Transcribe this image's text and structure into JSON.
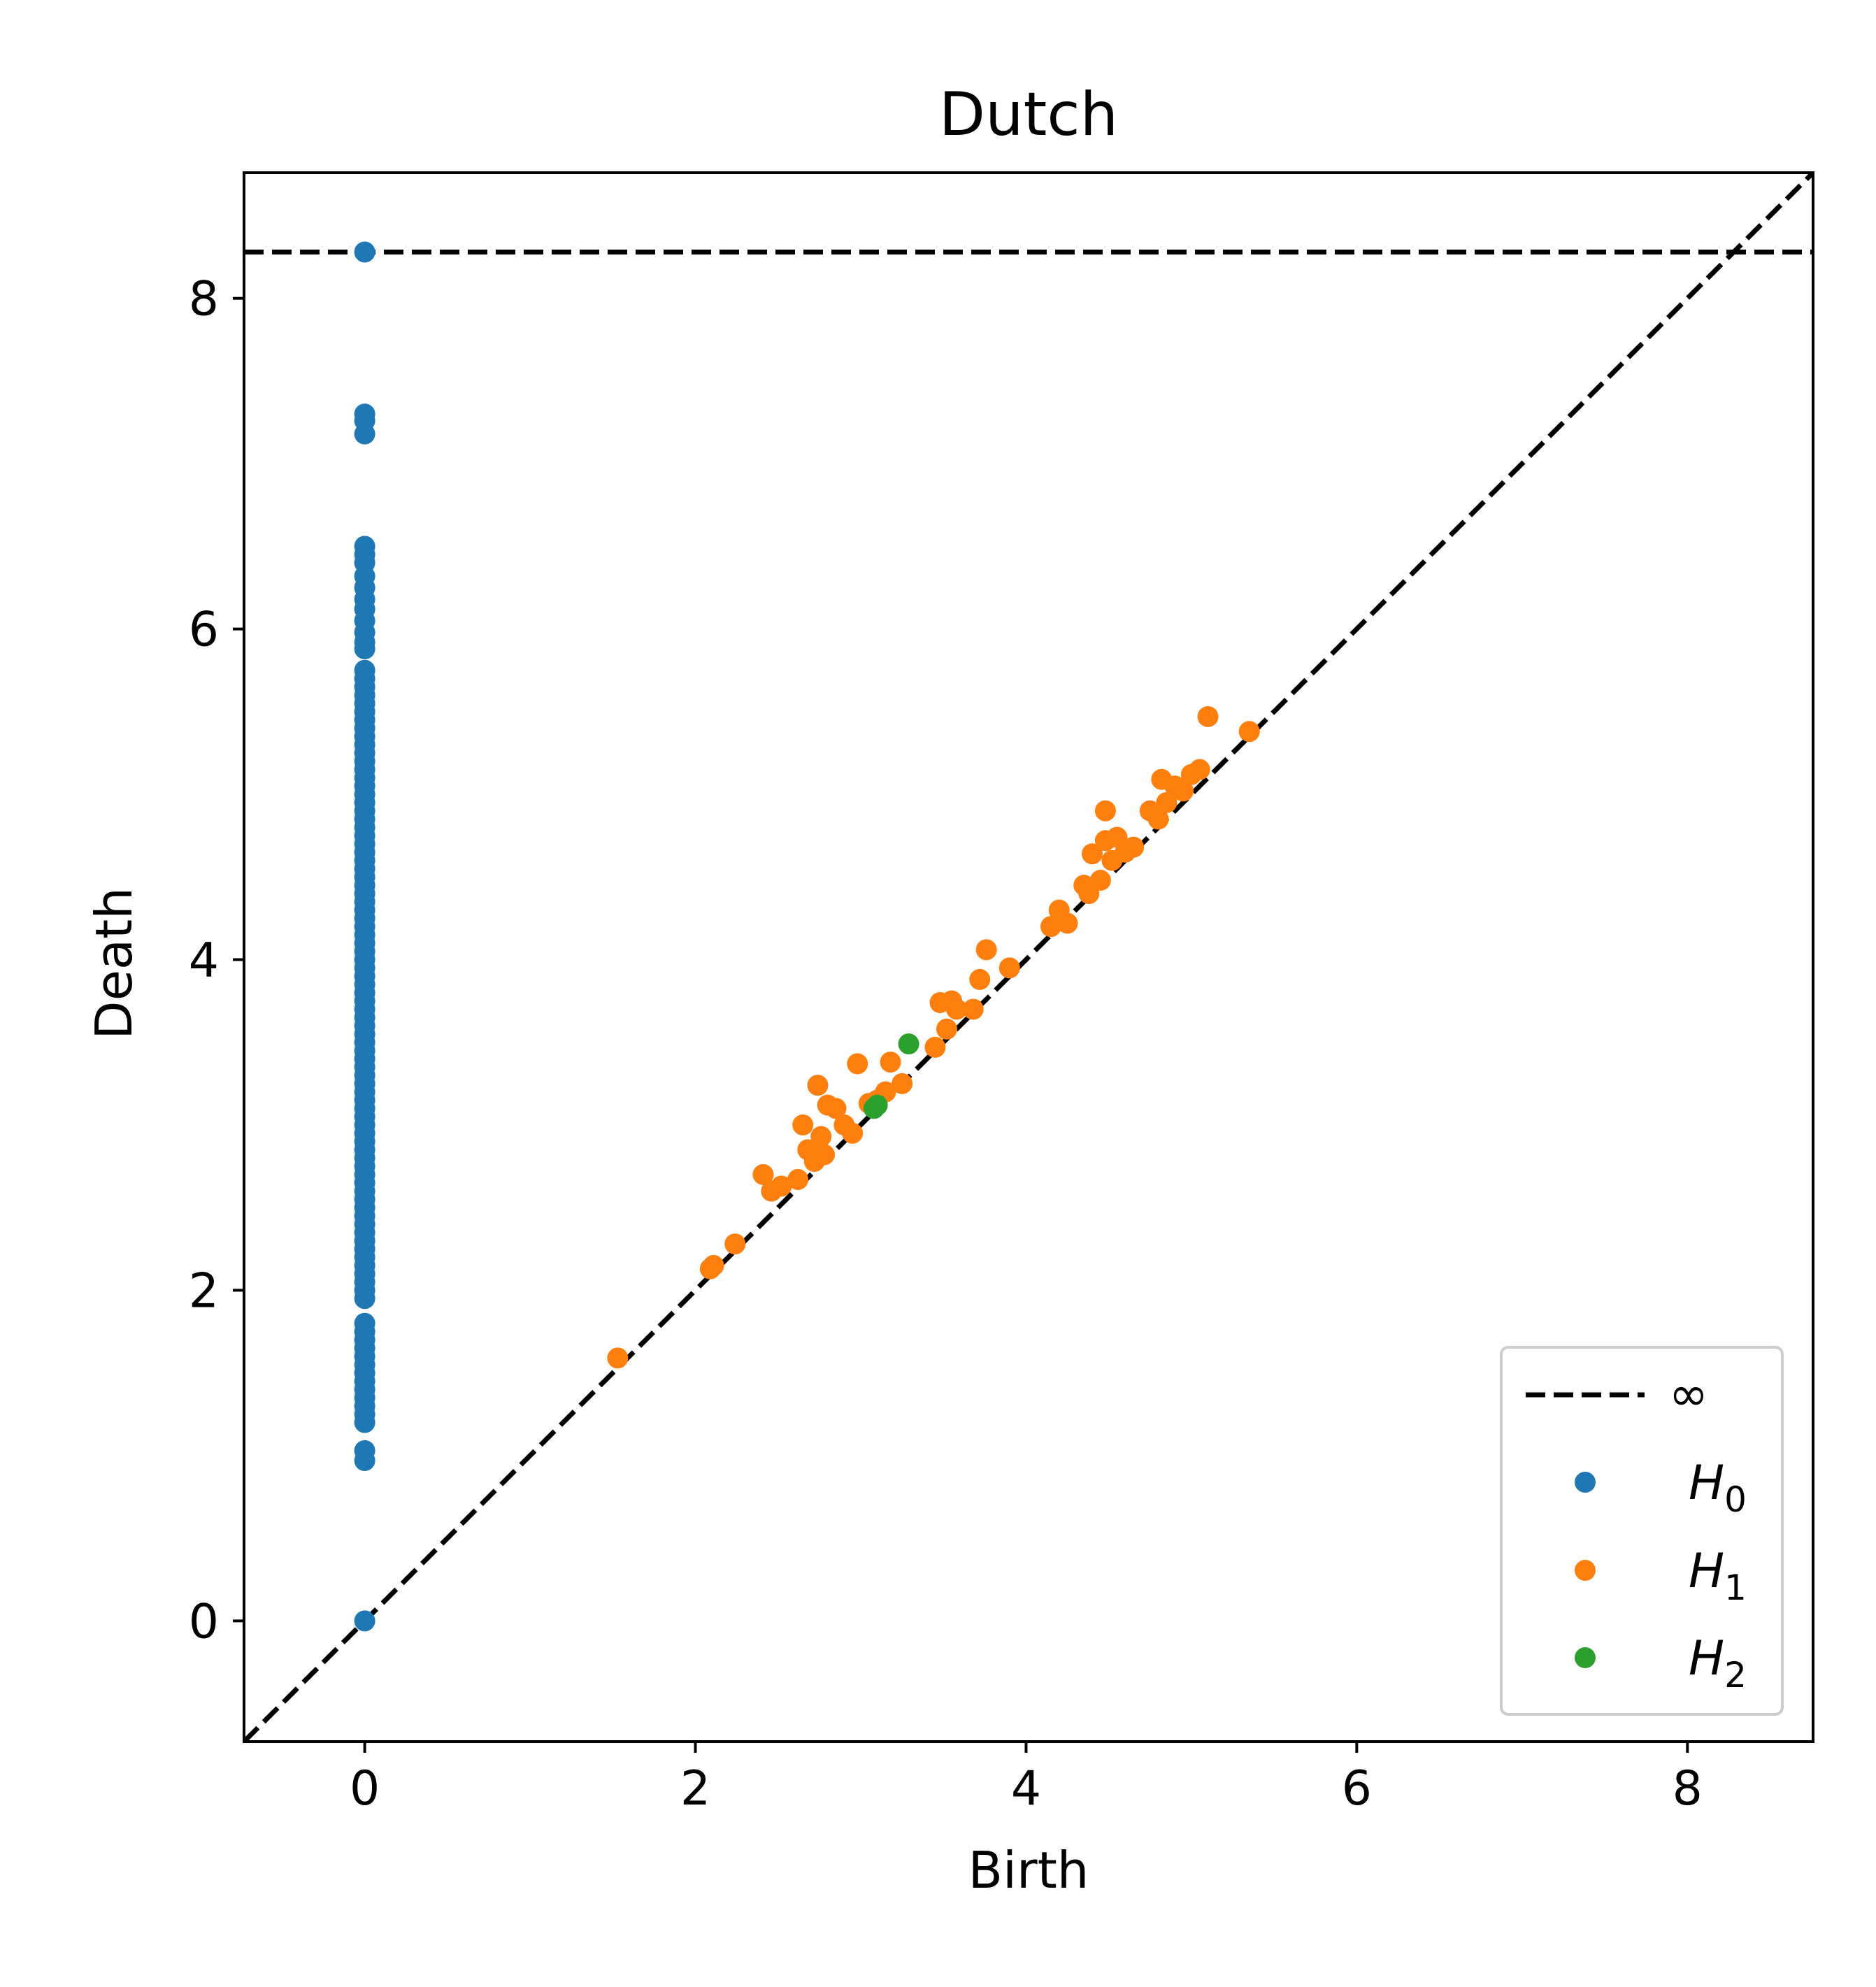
{
  "chart_data": {
    "type": "scatter",
    "title": "Dutch",
    "xlabel": "Birth",
    "ylabel": "Death",
    "xlim": [
      -0.73,
      8.76
    ],
    "ylim": [
      -0.73,
      8.76
    ],
    "x_ticks": [
      {
        "value": 0,
        "label": "0"
      },
      {
        "value": 2,
        "label": "2"
      },
      {
        "value": 4,
        "label": "4"
      },
      {
        "value": 6,
        "label": "6"
      },
      {
        "value": 8,
        "label": "8"
      }
    ],
    "y_ticks": [
      {
        "value": 0,
        "label": "0"
      },
      {
        "value": 2,
        "label": "2"
      },
      {
        "value": 4,
        "label": "4"
      },
      {
        "value": 6,
        "label": "6"
      },
      {
        "value": 8,
        "label": "8"
      }
    ],
    "grid": false,
    "infinity_line": {
      "y": 8.28,
      "label": "∞",
      "style": "dashed",
      "color": "#000000"
    },
    "diagonal_line": {
      "from": [
        -0.73,
        -0.73
      ],
      "to": [
        8.76,
        8.76
      ],
      "style": "dashed",
      "color": "#000000"
    },
    "legend": {
      "position": "lower right",
      "entries": [
        {
          "label": "∞",
          "kind": "dashed-line",
          "color": "#000000"
        },
        {
          "label": "H",
          "subscript": "0",
          "kind": "marker",
          "color": "#1f77b4"
        },
        {
          "label": "H",
          "subscript": "1",
          "kind": "marker",
          "color": "#ff7f0e"
        },
        {
          "label": "H",
          "subscript": "2",
          "kind": "marker",
          "color": "#2ca02c"
        }
      ]
    },
    "series": [
      {
        "name": "H0",
        "color": "#1f77b4",
        "points": [
          [
            0,
            8.28
          ],
          [
            0,
            7.3
          ],
          [
            0,
            7.26
          ],
          [
            0,
            7.18
          ],
          [
            0,
            6.5
          ],
          [
            0,
            6.45
          ],
          [
            0,
            6.4
          ],
          [
            0,
            6.32
          ],
          [
            0,
            6.25
          ],
          [
            0,
            6.18
          ],
          [
            0,
            6.12
          ],
          [
            0,
            6.05
          ],
          [
            0,
            5.98
          ],
          [
            0,
            5.92
          ],
          [
            0,
            5.88
          ],
          [
            0,
            5.75
          ],
          [
            0,
            5.7
          ],
          [
            0,
            5.65
          ],
          [
            0,
            5.6
          ],
          [
            0,
            5.55
          ],
          [
            0,
            5.5
          ],
          [
            0,
            5.45
          ],
          [
            0,
            5.4
          ],
          [
            0,
            5.35
          ],
          [
            0,
            5.3
          ],
          [
            0,
            5.25
          ],
          [
            0,
            5.2
          ],
          [
            0,
            5.15
          ],
          [
            0,
            5.1
          ],
          [
            0,
            5.05
          ],
          [
            0,
            5.0
          ],
          [
            0,
            4.95
          ],
          [
            0,
            4.9
          ],
          [
            0,
            4.85
          ],
          [
            0,
            4.8
          ],
          [
            0,
            4.75
          ],
          [
            0,
            4.7
          ],
          [
            0,
            4.65
          ],
          [
            0,
            4.6
          ],
          [
            0,
            4.55
          ],
          [
            0,
            4.5
          ],
          [
            0,
            4.45
          ],
          [
            0,
            4.4
          ],
          [
            0,
            4.35
          ],
          [
            0,
            4.3
          ],
          [
            0,
            4.25
          ],
          [
            0,
            4.2
          ],
          [
            0,
            4.15
          ],
          [
            0,
            4.1
          ],
          [
            0,
            4.05
          ],
          [
            0,
            4.0
          ],
          [
            0,
            3.95
          ],
          [
            0,
            3.9
          ],
          [
            0,
            3.85
          ],
          [
            0,
            3.8
          ],
          [
            0,
            3.75
          ],
          [
            0,
            3.7
          ],
          [
            0,
            3.65
          ],
          [
            0,
            3.6
          ],
          [
            0,
            3.55
          ],
          [
            0,
            3.5
          ],
          [
            0,
            3.45
          ],
          [
            0,
            3.4
          ],
          [
            0,
            3.35
          ],
          [
            0,
            3.3
          ],
          [
            0,
            3.25
          ],
          [
            0,
            3.2
          ],
          [
            0,
            3.15
          ],
          [
            0,
            3.1
          ],
          [
            0,
            3.05
          ],
          [
            0,
            3.0
          ],
          [
            0,
            2.95
          ],
          [
            0,
            2.9
          ],
          [
            0,
            2.85
          ],
          [
            0,
            2.8
          ],
          [
            0,
            2.75
          ],
          [
            0,
            2.7
          ],
          [
            0,
            2.65
          ],
          [
            0,
            2.6
          ],
          [
            0,
            2.55
          ],
          [
            0,
            2.5
          ],
          [
            0,
            2.45
          ],
          [
            0,
            2.4
          ],
          [
            0,
            2.35
          ],
          [
            0,
            2.3
          ],
          [
            0,
            2.25
          ],
          [
            0,
            2.2
          ],
          [
            0,
            2.15
          ],
          [
            0,
            2.1
          ],
          [
            0,
            2.05
          ],
          [
            0,
            2.0
          ],
          [
            0,
            1.95
          ],
          [
            0,
            1.8
          ],
          [
            0,
            1.75
          ],
          [
            0,
            1.7
          ],
          [
            0,
            1.65
          ],
          [
            0,
            1.6
          ],
          [
            0,
            1.55
          ],
          [
            0,
            1.5
          ],
          [
            0,
            1.45
          ],
          [
            0,
            1.4
          ],
          [
            0,
            1.35
          ],
          [
            0,
            1.3
          ],
          [
            0,
            1.25
          ],
          [
            0,
            1.2
          ],
          [
            0,
            1.03
          ],
          [
            0,
            0.97
          ],
          [
            0,
            0.0
          ]
        ]
      },
      {
        "name": "H1",
        "color": "#ff7f0e",
        "points": [
          [
            1.53,
            1.59
          ],
          [
            2.09,
            2.13
          ],
          [
            2.11,
            2.15
          ],
          [
            2.24,
            2.28
          ],
          [
            2.41,
            2.7
          ],
          [
            2.46,
            2.6
          ],
          [
            2.52,
            2.63
          ],
          [
            2.62,
            2.67
          ],
          [
            2.65,
            3.0
          ],
          [
            2.68,
            2.85
          ],
          [
            2.72,
            2.78
          ],
          [
            2.74,
            3.24
          ],
          [
            2.76,
            2.93
          ],
          [
            2.78,
            2.82
          ],
          [
            2.8,
            3.12
          ],
          [
            2.85,
            3.1
          ],
          [
            2.9,
            3.0
          ],
          [
            2.95,
            2.95
          ],
          [
            2.98,
            3.37
          ],
          [
            3.05,
            3.13
          ],
          [
            3.1,
            3.15
          ],
          [
            3.15,
            3.2
          ],
          [
            3.18,
            3.38
          ],
          [
            3.25,
            3.25
          ],
          [
            3.45,
            3.47
          ],
          [
            3.48,
            3.74
          ],
          [
            3.52,
            3.58
          ],
          [
            3.55,
            3.75
          ],
          [
            3.58,
            3.7
          ],
          [
            3.68,
            3.7
          ],
          [
            3.72,
            3.88
          ],
          [
            3.76,
            4.06
          ],
          [
            3.9,
            3.95
          ],
          [
            4.15,
            4.2
          ],
          [
            4.2,
            4.3
          ],
          [
            4.25,
            4.22
          ],
          [
            4.35,
            4.45
          ],
          [
            4.38,
            4.4
          ],
          [
            4.4,
            4.64
          ],
          [
            4.45,
            4.48
          ],
          [
            4.48,
            4.72
          ],
          [
            4.48,
            4.9
          ],
          [
            4.52,
            4.6
          ],
          [
            4.55,
            4.74
          ],
          [
            4.6,
            4.65
          ],
          [
            4.65,
            4.68
          ],
          [
            4.75,
            4.9
          ],
          [
            4.8,
            4.85
          ],
          [
            4.82,
            5.09
          ],
          [
            4.85,
            4.95
          ],
          [
            4.9,
            5.05
          ],
          [
            4.95,
            5.02
          ],
          [
            5.0,
            5.12
          ],
          [
            5.05,
            5.15
          ],
          [
            5.1,
            5.47
          ],
          [
            5.35,
            5.38
          ]
        ]
      },
      {
        "name": "H2",
        "color": "#2ca02c",
        "points": [
          [
            3.08,
            3.1
          ],
          [
            3.1,
            3.12
          ],
          [
            3.29,
            3.49
          ]
        ]
      }
    ]
  }
}
